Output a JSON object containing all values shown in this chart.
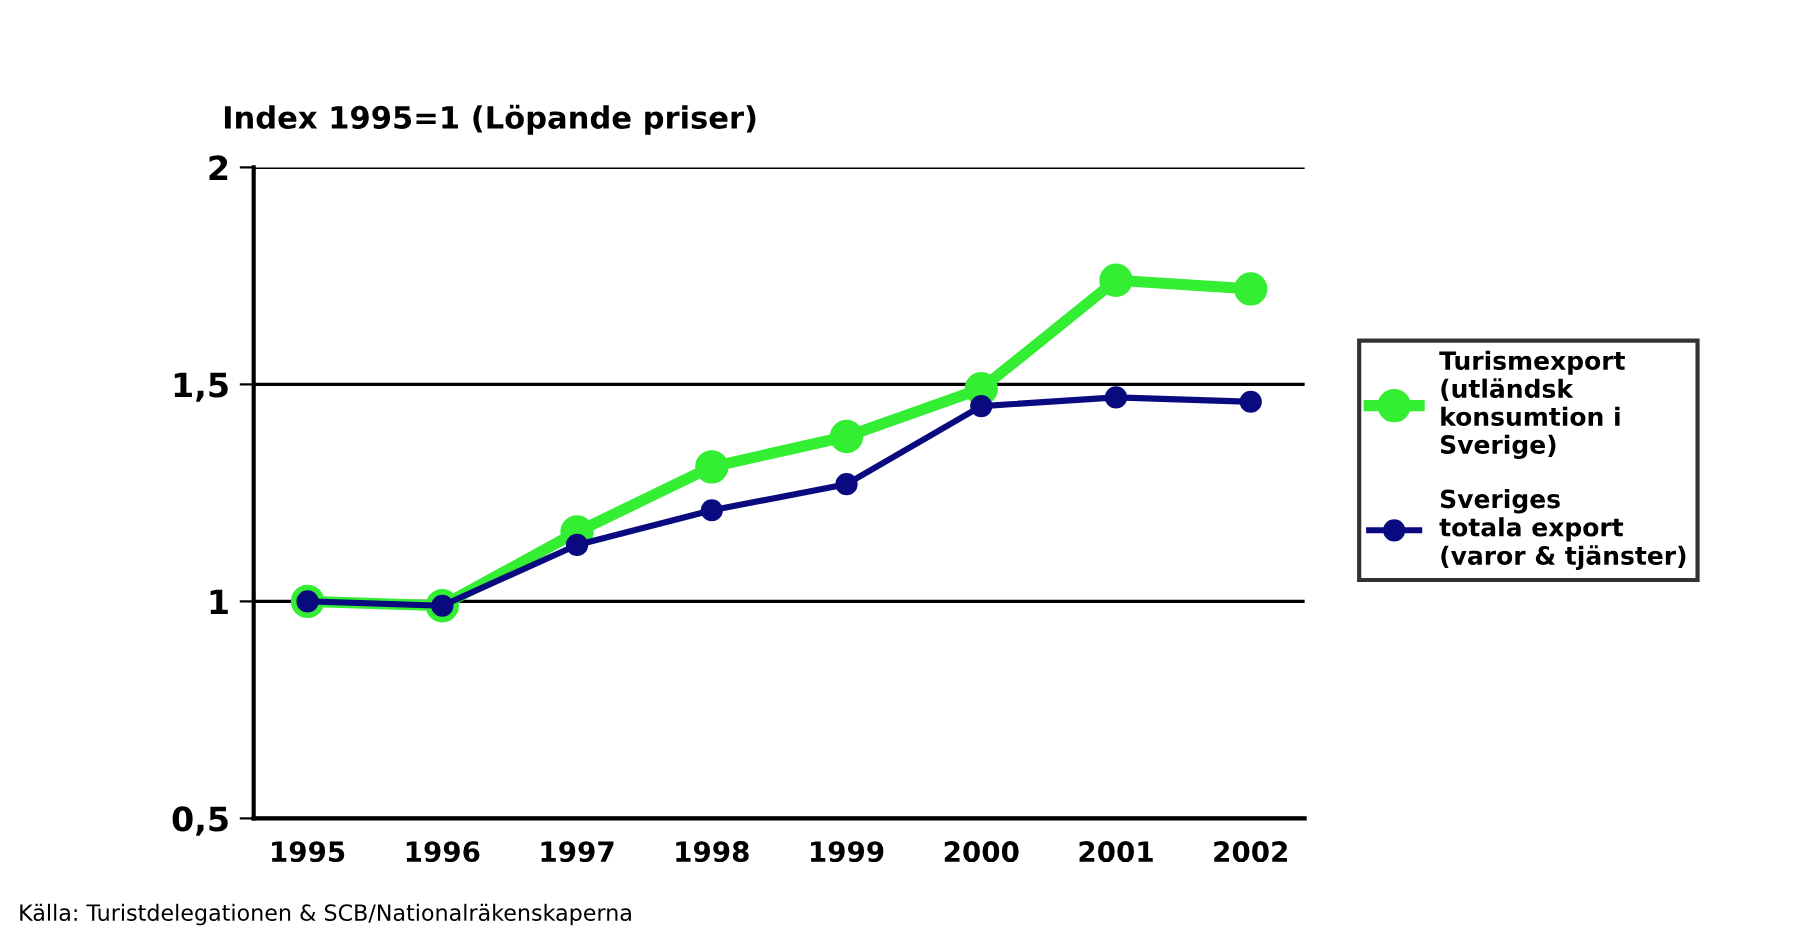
{
  "chart_data": {
    "type": "line",
    "title": "Index 1995=1 (Löpande priser)",
    "categories": [
      "1995",
      "1996",
      "1997",
      "1998",
      "1999",
      "2000",
      "2001",
      "2002"
    ],
    "series": [
      {
        "name": "Turismexport\n(utländsk\nkonsumtion i\nSverige)",
        "color": "#33ee33",
        "values": [
          1.0,
          0.99,
          1.16,
          1.31,
          1.38,
          1.49,
          1.74,
          1.72
        ]
      },
      {
        "name": "Sveriges\ntotala export\n(varor & tjänster)",
        "color": "#0a0a80",
        "values": [
          1.0,
          0.99,
          1.13,
          1.21,
          1.27,
          1.45,
          1.47,
          1.46
        ]
      }
    ],
    "ylim": [
      0.5,
      2
    ],
    "yticks": [
      {
        "value": 0.5,
        "label": "0,5"
      },
      1,
      {
        "value": 1.5,
        "label": "1,5"
      },
      2
    ],
    "grid": "y",
    "legend": "right",
    "marker": "circle",
    "line_style": "solid",
    "annotations": [
      "Källa: Turistdelegationen & SCB/Nationalräkenskaperna"
    ]
  }
}
